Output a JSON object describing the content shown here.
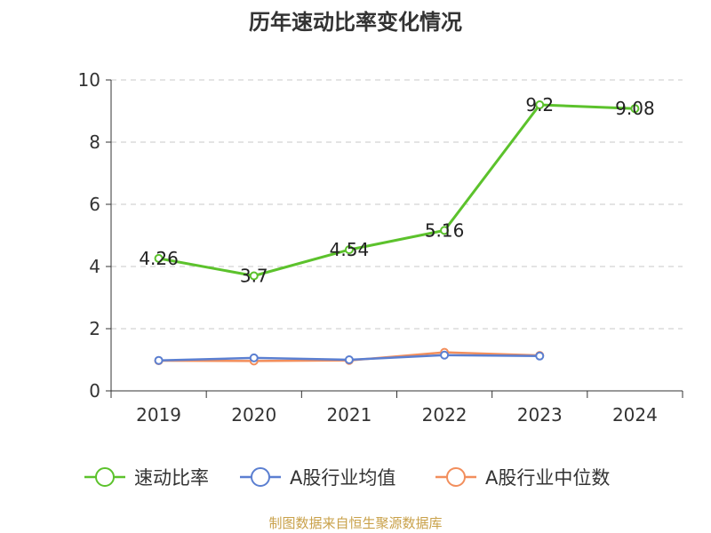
{
  "chart_data": {
    "type": "line",
    "title": "历年速动比率变化情况",
    "categories": [
      "2019",
      "2020",
      "2021",
      "2022",
      "2023",
      "2024"
    ],
    "ylim": [
      0,
      10
    ],
    "yticks": [
      0,
      2,
      4,
      6,
      8,
      10
    ],
    "grid": true,
    "legend_position": "bottom",
    "series": [
      {
        "name": "速动比率",
        "color": "#5cc22c",
        "values": [
          4.26,
          3.7,
          4.54,
          5.16,
          9.2,
          9.08
        ],
        "labels": [
          "4.26",
          "3.7",
          "4.54",
          "5.16",
          "9.2",
          "9.08"
        ]
      },
      {
        "name": "A股行业均值",
        "color": "#5b7fd1",
        "values": [
          0.98,
          1.06,
          1.0,
          1.15,
          1.12,
          null
        ]
      },
      {
        "name": "A股行业中位数",
        "color": "#f28e5c",
        "values": [
          0.97,
          0.96,
          0.98,
          1.24,
          1.14,
          null
        ]
      }
    ]
  },
  "footer": "制图数据来自恒生聚源数据库"
}
